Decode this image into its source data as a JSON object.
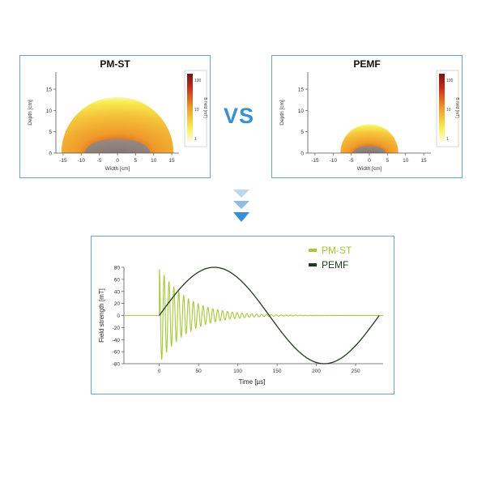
{
  "vs_label": "VS",
  "colors": {
    "panel_border": "#6aa3cf",
    "vs": "#3a8fd0",
    "pmst_line": "#a3c93a",
    "pemf_line": "#1f3a1c",
    "heat_low": "#f8ee52",
    "heat_mid": "#ef9a2a",
    "heat_high": "#c8281e",
    "heat_core": "#8a8a8a"
  },
  "chart_data": [
    {
      "type": "heatmap",
      "title": "PM-ST",
      "xlabel": "Width [cm]",
      "ylabel": "Depth [cm]",
      "xticks": [
        -15,
        -10,
        -5,
        0,
        5,
        10,
        15
      ],
      "yticks": [
        0,
        5,
        10,
        15
      ],
      "xlim": [
        -17,
        17
      ],
      "ylim": [
        0,
        19
      ],
      "field_radius_cm": 15.5,
      "core_radius_cm": 9,
      "colorbar": {
        "label": "B field [mT]",
        "ticks": [
          "100",
          "10",
          "1"
        ]
      }
    },
    {
      "type": "heatmap",
      "title": "PEMF",
      "xlabel": "Width [cm]",
      "ylabel": "Depth [cm]",
      "xticks": [
        -15,
        -10,
        -5,
        0,
        5,
        10,
        15
      ],
      "yticks": [
        0,
        5,
        10,
        15
      ],
      "xlim": [
        -17,
        17
      ],
      "ylim": [
        0,
        19
      ],
      "field_radius_cm": 8,
      "core_radius_cm": 4.5,
      "colorbar": {
        "label": "B field [mT]",
        "ticks": [
          "100",
          "10",
          "1"
        ]
      }
    },
    {
      "type": "line",
      "xlabel": "Time [µs]",
      "ylabel": "Field strength [mT]",
      "xticks": [
        0,
        50,
        100,
        150,
        200,
        250
      ],
      "yticks": [
        80,
        60,
        40,
        20,
        0,
        -20,
        -40,
        -60,
        -80
      ],
      "xlim": [
        -45,
        285
      ],
      "ylim": [
        -80,
        80
      ],
      "series": [
        {
          "name": "PM-ST",
          "kind": "damped_oscillation",
          "start_us": 0,
          "peak_mT": 80,
          "period_us": 6.2,
          "decay_tau_us": 35,
          "end_us": 285
        },
        {
          "name": "PEMF",
          "kind": "sine",
          "start_us": 0,
          "end_us": 280,
          "period_us": 280,
          "amplitude_mT": 80
        }
      ]
    }
  ]
}
